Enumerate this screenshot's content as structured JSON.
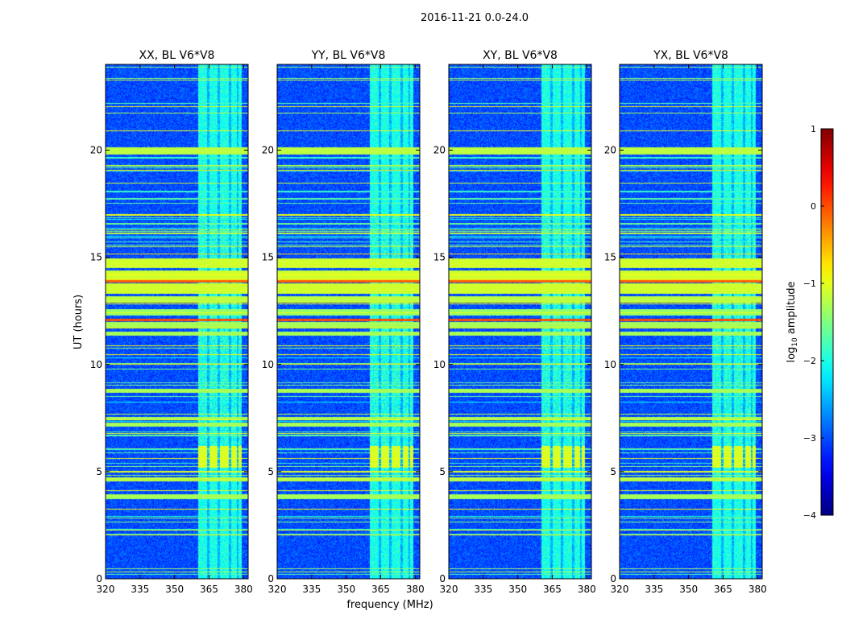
{
  "chart_data": {
    "type": "heatmap",
    "suptitle": "2016-11-21 0.0-24.0",
    "xlabel": "frequency (MHz)",
    "ylabel": "UT (hours)",
    "xlim": [
      320,
      382
    ],
    "ylim": [
      0,
      24
    ],
    "xticks": [
      320,
      335,
      350,
      365,
      380
    ],
    "yticks": [
      0,
      5,
      10,
      15,
      20
    ],
    "panels": [
      {
        "title": "XX, BL V6*V8"
      },
      {
        "title": "YY, BL V6*V8"
      },
      {
        "title": "XY, BL V6*V8"
      },
      {
        "title": "YX, BL V6*V8"
      }
    ],
    "colorbar": {
      "label_prefix": "log",
      "label_sub": "10",
      "label_suffix": " amplitude",
      "min": -4,
      "max": 1,
      "ticks": [
        1,
        0,
        -1,
        -2,
        -3,
        -4
      ],
      "tick_labels": [
        "1",
        "0",
        "−1",
        "−2",
        "−3",
        "−4"
      ],
      "colormap": "jet"
    },
    "features": {
      "background_level": -3.0,
      "rfi_band_mhz": [
        360,
        379
      ],
      "rfi_band_columns_mhz": [
        [
          360,
          364
        ],
        [
          365,
          368.5
        ],
        [
          369.5,
          373.5
        ],
        [
          374.5,
          377
        ],
        [
          377.5,
          379
        ]
      ],
      "bright_rows_ut": [
        {
          "t0": 11.35,
          "t1": 11.55,
          "level": -1.3
        },
        {
          "t0": 11.75,
          "t1": 12.0,
          "level": -1.3
        },
        {
          "t0": 12.05,
          "t1": 12.15,
          "level": 0.0
        },
        {
          "t0": 12.3,
          "t1": 12.6,
          "level": -1.4
        },
        {
          "t0": 12.9,
          "t1": 13.2,
          "level": -1.2
        },
        {
          "t0": 13.3,
          "t1": 13.8,
          "level": -1.1
        },
        {
          "t0": 13.85,
          "t1": 13.95,
          "level": -0.1
        },
        {
          "t0": 14.0,
          "t1": 14.4,
          "level": -1.1
        },
        {
          "t0": 14.5,
          "t1": 14.95,
          "level": -1.1
        },
        {
          "t0": 19.8,
          "t1": 20.15,
          "level": -1.2
        },
        {
          "t0": 7.1,
          "t1": 7.3,
          "level": -1.3
        },
        {
          "t0": 7.4,
          "t1": 7.55,
          "level": -1.3
        },
        {
          "t0": 8.7,
          "t1": 8.9,
          "level": -1.3
        },
        {
          "t0": 3.75,
          "t1": 3.95,
          "level": -1.3
        },
        {
          "t0": 4.55,
          "t1": 4.75,
          "level": -1.2
        }
      ]
    }
  }
}
